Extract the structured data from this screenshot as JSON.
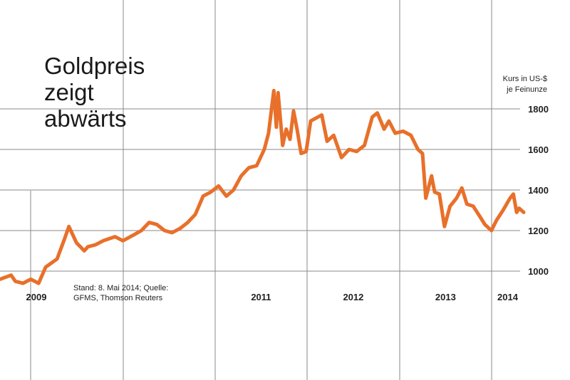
{
  "chart_data": {
    "type": "line",
    "title_lines": [
      "Goldpreis",
      "zeigt",
      "abwärts"
    ],
    "unit_lines": [
      "Kurs in US-$",
      "je Feinunze"
    ],
    "source_lines": [
      "Stand: 8. Mai 2014; Quelle:",
      "GFMS, Thomson Reuters"
    ],
    "y_ticks": [
      "1000",
      "1200",
      "1400",
      "1600",
      "1800"
    ],
    "ylim": [
      1000,
      1800
    ],
    "year_labels": [
      "2009",
      "2011",
      "2012",
      "2013",
      "2014"
    ],
    "x_range": [
      "2008-09-01",
      "2014-05-08"
    ],
    "grid": true,
    "series_color": "#e8702a",
    "x": [
      "2008-09-01",
      "2008-10-15",
      "2008-11-01",
      "2008-12-01",
      "2009-01-01",
      "2009-02-01",
      "2009-03-01",
      "2009-04-15",
      "2009-05-15",
      "2009-06-01",
      "2009-07-01",
      "2009-08-01",
      "2009-08-15",
      "2009-09-15",
      "2009-10-15",
      "2009-12-01",
      "2010-01-01",
      "2010-02-15",
      "2010-03-15",
      "2010-04-15",
      "2010-05-15",
      "2010-06-15",
      "2010-07-15",
      "2010-08-15",
      "2010-09-15",
      "2010-10-15",
      "2010-11-15",
      "2010-12-15",
      "2011-01-15",
      "2011-02-15",
      "2011-03-15",
      "2011-04-15",
      "2011-05-15",
      "2011-06-15",
      "2011-07-15",
      "2011-08-01",
      "2011-08-22",
      "2011-09-01",
      "2011-09-08",
      "2011-09-26",
      "2011-10-10",
      "2011-10-25",
      "2011-11-08",
      "2011-11-22",
      "2011-12-08",
      "2011-12-28",
      "2012-01-15",
      "2012-02-28",
      "2012-03-20",
      "2012-04-15",
      "2012-05-16",
      "2012-06-15",
      "2012-07-15",
      "2012-08-15",
      "2012-09-15",
      "2012-10-05",
      "2012-11-01",
      "2012-11-20",
      "2012-12-15",
      "2013-01-15",
      "2013-02-15",
      "2013-03-15",
      "2013-04-02",
      "2013-04-15",
      "2013-05-08",
      "2013-05-20",
      "2013-06-08",
      "2013-06-28",
      "2013-07-20",
      "2013-08-15",
      "2013-09-05",
      "2013-09-25",
      "2013-10-20",
      "2013-11-15",
      "2013-12-05",
      "2013-12-31",
      "2014-01-20",
      "2014-02-15",
      "2014-03-15",
      "2014-03-28",
      "2014-04-10",
      "2014-04-20",
      "2014-05-08"
    ],
    "values": [
      960,
      980,
      950,
      940,
      960,
      940,
      1020,
      1060,
      1160,
      1220,
      1140,
      1100,
      1120,
      1130,
      1150,
      1170,
      1150,
      1180,
      1200,
      1240,
      1230,
      1200,
      1190,
      1210,
      1240,
      1280,
      1370,
      1390,
      1420,
      1370,
      1400,
      1470,
      1510,
      1520,
      1600,
      1680,
      1890,
      1710,
      1880,
      1620,
      1700,
      1650,
      1790,
      1700,
      1580,
      1590,
      1740,
      1770,
      1640,
      1670,
      1560,
      1600,
      1590,
      1620,
      1760,
      1780,
      1700,
      1740,
      1680,
      1690,
      1670,
      1600,
      1580,
      1360,
      1470,
      1390,
      1380,
      1220,
      1320,
      1360,
      1410,
      1330,
      1320,
      1270,
      1230,
      1200,
      1250,
      1300,
      1360,
      1380,
      1290,
      1310,
      1290
    ]
  }
}
